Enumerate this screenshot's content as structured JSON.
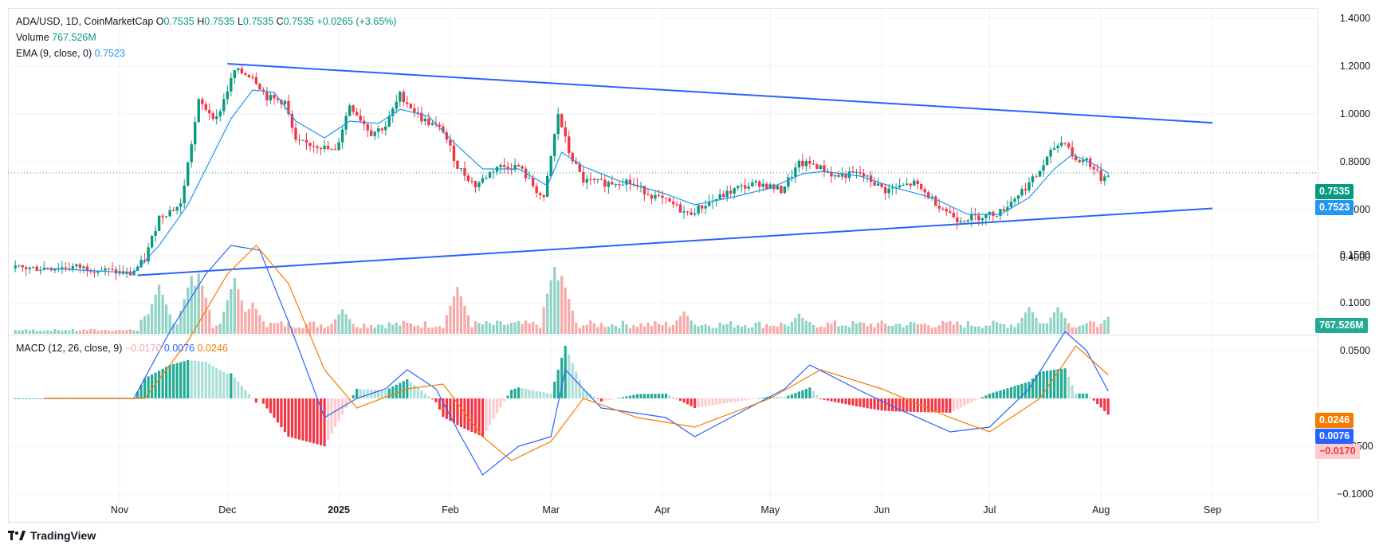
{
  "legend": {
    "symbol": "ADA/USD, 1D, CoinMarketCap",
    "o_label": "O",
    "o_value": "0.7535",
    "h_label": "H",
    "h_value": "0.7535",
    "l_label": "L",
    "l_value": "0.7535",
    "c_label": "C",
    "c_value": "0.7535",
    "change": "+0.0265 (+3.65%)",
    "volume_label": "Volume",
    "volume_value": "767.526M",
    "ema_label": "EMA (9, close, 0)",
    "ema_value": "0.7523",
    "macd_label": "MACD (12, 26, close, 9)",
    "macd_hist": "−0.0170",
    "macd_line": "0.0076",
    "macd_signal": "0.0246"
  },
  "badges": {
    "last_price": "0.7535",
    "ema": "0.7523",
    "volume": "767.526M",
    "signal": "0.0246",
    "macd": "0.0076",
    "hist": "−0.0170"
  },
  "brand": "TradingView",
  "colors": {
    "up": "#089981",
    "down": "#f23645",
    "ema": "#2196f3",
    "trend": "#2962ff",
    "macd": "#2962ff",
    "signal": "#f57c00"
  },
  "chart_data": {
    "type": "line",
    "x_tick_labels": [
      "Nov",
      "Dec",
      "2025",
      "Feb",
      "Mar",
      "Apr",
      "May",
      "Jun",
      "Jul",
      "Aug",
      "Sep"
    ],
    "price_axis_labels": [
      "1.4000",
      "1.2000",
      "1.0000",
      "0.8000",
      "0.6000",
      "0.4000"
    ],
    "macd_axis_labels": [
      "0.1500",
      "0.1000",
      "0.0500",
      "−0.0500",
      "−0.1000"
    ],
    "price_close": [
      {
        "x": "2024-10-11",
        "y": 0.355
      },
      {
        "x": "2024-10-20",
        "y": 0.36
      },
      {
        "x": "2024-10-28",
        "y": 0.345
      },
      {
        "x": "2024-11-04",
        "y": 0.33
      },
      {
        "x": "2024-11-08",
        "y": 0.39
      },
      {
        "x": "2024-11-12",
        "y": 0.57
      },
      {
        "x": "2024-11-18",
        "y": 0.62
      },
      {
        "x": "2024-11-23",
        "y": 1.05
      },
      {
        "x": "2024-11-28",
        "y": 0.98
      },
      {
        "x": "2024-12-03",
        "y": 1.18
      },
      {
        "x": "2024-12-08",
        "y": 1.16
      },
      {
        "x": "2024-12-12",
        "y": 1.07
      },
      {
        "x": "2024-12-17",
        "y": 1.05
      },
      {
        "x": "2024-12-20",
        "y": 0.88
      },
      {
        "x": "2024-12-26",
        "y": 0.87
      },
      {
        "x": "2024-12-31",
        "y": 0.84
      },
      {
        "x": "2025-01-04",
        "y": 1.04
      },
      {
        "x": "2025-01-10",
        "y": 0.92
      },
      {
        "x": "2025-01-14",
        "y": 0.95
      },
      {
        "x": "2025-01-18",
        "y": 1.08
      },
      {
        "x": "2025-01-24",
        "y": 0.98
      },
      {
        "x": "2025-01-30",
        "y": 0.93
      },
      {
        "x": "2025-02-03",
        "y": 0.78
      },
      {
        "x": "2025-02-08",
        "y": 0.7
      },
      {
        "x": "2025-02-14",
        "y": 0.78
      },
      {
        "x": "2025-02-20",
        "y": 0.78
      },
      {
        "x": "2025-02-27",
        "y": 0.64
      },
      {
        "x": "2025-03-03",
        "y": 1.0
      },
      {
        "x": "2025-03-06",
        "y": 0.84
      },
      {
        "x": "2025-03-10",
        "y": 0.72
      },
      {
        "x": "2025-03-16",
        "y": 0.71
      },
      {
        "x": "2025-03-22",
        "y": 0.72
      },
      {
        "x": "2025-03-29",
        "y": 0.66
      },
      {
        "x": "2025-04-04",
        "y": 0.62
      },
      {
        "x": "2025-04-08",
        "y": 0.58
      },
      {
        "x": "2025-04-14",
        "y": 0.63
      },
      {
        "x": "2025-04-22",
        "y": 0.69
      },
      {
        "x": "2025-04-28",
        "y": 0.71
      },
      {
        "x": "2025-05-04",
        "y": 0.68
      },
      {
        "x": "2025-05-09",
        "y": 0.79
      },
      {
        "x": "2025-05-13",
        "y": 0.79
      },
      {
        "x": "2025-05-19",
        "y": 0.74
      },
      {
        "x": "2025-05-26",
        "y": 0.75
      },
      {
        "x": "2025-06-02",
        "y": 0.68
      },
      {
        "x": "2025-06-10",
        "y": 0.71
      },
      {
        "x": "2025-06-16",
        "y": 0.63
      },
      {
        "x": "2025-06-22",
        "y": 0.56
      },
      {
        "x": "2025-06-28",
        "y": 0.57
      },
      {
        "x": "2025-07-04",
        "y": 0.59
      },
      {
        "x": "2025-07-10",
        "y": 0.68
      },
      {
        "x": "2025-07-14",
        "y": 0.74
      },
      {
        "x": "2025-07-19",
        "y": 0.86
      },
      {
        "x": "2025-07-22",
        "y": 0.89
      },
      {
        "x": "2025-07-25",
        "y": 0.8
      },
      {
        "x": "2025-07-28",
        "y": 0.81
      },
      {
        "x": "2025-08-01",
        "y": 0.73
      },
      {
        "x": "2025-08-03",
        "y": 0.7535
      }
    ],
    "ema9": [
      {
        "x": "2024-10-11",
        "y": 0.355
      },
      {
        "x": "2024-11-05",
        "y": 0.335
      },
      {
        "x": "2024-11-12",
        "y": 0.45
      },
      {
        "x": "2024-11-20",
        "y": 0.62
      },
      {
        "x": "2024-11-26",
        "y": 0.8
      },
      {
        "x": "2024-12-02",
        "y": 0.98
      },
      {
        "x": "2024-12-08",
        "y": 1.1
      },
      {
        "x": "2024-12-14",
        "y": 1.09
      },
      {
        "x": "2024-12-20",
        "y": 0.97
      },
      {
        "x": "2024-12-28",
        "y": 0.9
      },
      {
        "x": "2025-01-04",
        "y": 0.97
      },
      {
        "x": "2025-01-12",
        "y": 0.96
      },
      {
        "x": "2025-01-18",
        "y": 1.02
      },
      {
        "x": "2025-01-26",
        "y": 0.99
      },
      {
        "x": "2025-02-02",
        "y": 0.88
      },
      {
        "x": "2025-02-10",
        "y": 0.77
      },
      {
        "x": "2025-02-20",
        "y": 0.77
      },
      {
        "x": "2025-02-28",
        "y": 0.7
      },
      {
        "x": "2025-03-04",
        "y": 0.84
      },
      {
        "x": "2025-03-10",
        "y": 0.78
      },
      {
        "x": "2025-03-20",
        "y": 0.72
      },
      {
        "x": "2025-04-01",
        "y": 0.67
      },
      {
        "x": "2025-04-10",
        "y": 0.62
      },
      {
        "x": "2025-04-20",
        "y": 0.65
      },
      {
        "x": "2025-05-01",
        "y": 0.69
      },
      {
        "x": "2025-05-10",
        "y": 0.75
      },
      {
        "x": "2025-05-16",
        "y": 0.76
      },
      {
        "x": "2025-05-26",
        "y": 0.74
      },
      {
        "x": "2025-06-05",
        "y": 0.69
      },
      {
        "x": "2025-06-15",
        "y": 0.65
      },
      {
        "x": "2025-06-25",
        "y": 0.58
      },
      {
        "x": "2025-07-04",
        "y": 0.58
      },
      {
        "x": "2025-07-12",
        "y": 0.65
      },
      {
        "x": "2025-07-19",
        "y": 0.77
      },
      {
        "x": "2025-07-24",
        "y": 0.83
      },
      {
        "x": "2025-07-30",
        "y": 0.79
      },
      {
        "x": "2025-08-03",
        "y": 0.7523
      }
    ],
    "trendlines": [
      {
        "from": {
          "x": "2024-12-01",
          "y": 1.21
        },
        "to": {
          "x": "2025-09-01",
          "y": 0.963
        }
      },
      {
        "from": {
          "x": "2024-11-06",
          "y": 0.325
        },
        "to": {
          "x": "2025-09-01",
          "y": 0.605
        }
      }
    ],
    "volume": {
      "last": "767.526M",
      "bars": [
        {
          "x": "2024-11-08",
          "v": 0.8
        },
        {
          "x": "2024-11-12",
          "v": 2.2
        },
        {
          "x": "2024-11-21",
          "v": 2.6
        },
        {
          "x": "2024-11-23",
          "v": 2.7
        },
        {
          "x": "2024-12-03",
          "v": 2.5
        },
        {
          "x": "2024-12-08",
          "v": 1.4
        },
        {
          "x": "2025-01-02",
          "v": 1.1
        },
        {
          "x": "2025-02-03",
          "v": 2.1
        },
        {
          "x": "2025-03-02",
          "v": 3.0
        },
        {
          "x": "2025-03-04",
          "v": 2.6
        },
        {
          "x": "2025-04-07",
          "v": 1.0
        },
        {
          "x": "2025-05-09",
          "v": 0.9
        },
        {
          "x": "2025-07-12",
          "v": 1.2
        },
        {
          "x": "2025-07-20",
          "v": 1.2
        },
        {
          "x": "2025-08-03",
          "v": 0.767
        }
      ]
    },
    "macd_line": [
      {
        "x": "2024-10-11",
        "y": 0.0
      },
      {
        "x": "2024-11-05",
        "y": 0.0
      },
      {
        "x": "2024-11-15",
        "y": 0.07
      },
      {
        "x": "2024-11-25",
        "y": 0.13
      },
      {
        "x": "2024-12-02",
        "y": 0.16
      },
      {
        "x": "2024-12-10",
        "y": 0.155
      },
      {
        "x": "2024-12-18",
        "y": 0.08
      },
      {
        "x": "2024-12-28",
        "y": -0.02
      },
      {
        "x": "2025-01-06",
        "y": 0.0
      },
      {
        "x": "2025-01-14",
        "y": 0.01
      },
      {
        "x": "2025-01-20",
        "y": 0.03
      },
      {
        "x": "2025-01-28",
        "y": 0.01
      },
      {
        "x": "2025-02-04",
        "y": -0.04
      },
      {
        "x": "2025-02-10",
        "y": -0.08
      },
      {
        "x": "2025-02-20",
        "y": -0.05
      },
      {
        "x": "2025-03-01",
        "y": -0.04
      },
      {
        "x": "2025-03-05",
        "y": 0.03
      },
      {
        "x": "2025-03-15",
        "y": -0.01
      },
      {
        "x": "2025-04-02",
        "y": -0.02
      },
      {
        "x": "2025-04-10",
        "y": -0.04
      },
      {
        "x": "2025-04-25",
        "y": -0.01
      },
      {
        "x": "2025-05-05",
        "y": 0.01
      },
      {
        "x": "2025-05-12",
        "y": 0.035
      },
      {
        "x": "2025-05-25",
        "y": 0.01
      },
      {
        "x": "2025-06-05",
        "y": -0.01
      },
      {
        "x": "2025-06-20",
        "y": -0.035
      },
      {
        "x": "2025-07-01",
        "y": -0.03
      },
      {
        "x": "2025-07-12",
        "y": 0.01
      },
      {
        "x": "2025-07-22",
        "y": 0.07
      },
      {
        "x": "2025-07-28",
        "y": 0.05
      },
      {
        "x": "2025-08-03",
        "y": 0.0076
      }
    ],
    "signal_line": [
      {
        "x": "2024-10-11",
        "y": 0.0
      },
      {
        "x": "2024-11-08",
        "y": 0.0
      },
      {
        "x": "2024-11-20",
        "y": 0.06
      },
      {
        "x": "2024-12-01",
        "y": 0.13
      },
      {
        "x": "2024-12-09",
        "y": 0.16
      },
      {
        "x": "2024-12-18",
        "y": 0.12
      },
      {
        "x": "2024-12-28",
        "y": 0.03
      },
      {
        "x": "2025-01-06",
        "y": -0.01
      },
      {
        "x": "2025-01-20",
        "y": 0.01
      },
      {
        "x": "2025-01-30",
        "y": 0.015
      },
      {
        "x": "2025-02-10",
        "y": -0.04
      },
      {
        "x": "2025-02-18",
        "y": -0.065
      },
      {
        "x": "2025-03-01",
        "y": -0.045
      },
      {
        "x": "2025-03-10",
        "y": -0.0
      },
      {
        "x": "2025-03-25",
        "y": -0.02
      },
      {
        "x": "2025-04-10",
        "y": -0.03
      },
      {
        "x": "2025-05-01",
        "y": -0.0
      },
      {
        "x": "2025-05-15",
        "y": 0.03
      },
      {
        "x": "2025-06-01",
        "y": 0.01
      },
      {
        "x": "2025-06-20",
        "y": -0.02
      },
      {
        "x": "2025-07-01",
        "y": -0.035
      },
      {
        "x": "2025-07-15",
        "y": 0.0
      },
      {
        "x": "2025-07-25",
        "y": 0.055
      },
      {
        "x": "2025-08-03",
        "y": 0.0246
      }
    ],
    "histogram_last": -0.017
  }
}
